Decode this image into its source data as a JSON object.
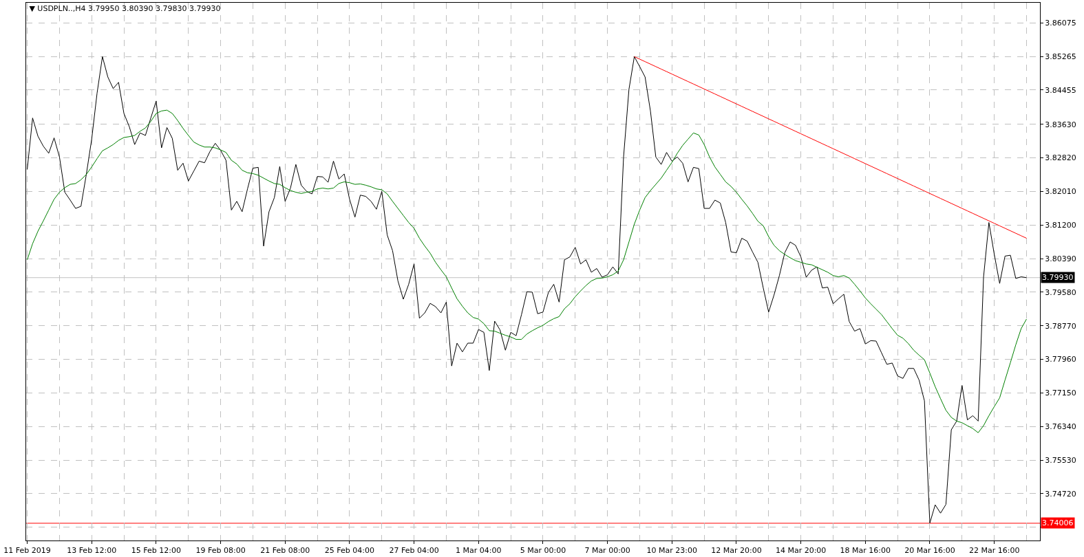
{
  "chart_data": {
    "type": "line",
    "title": "▼ USDPLN..,H4 3.79950 3.80390 3.79830 3.79930",
    "categories": [
      "11 Feb 2019",
      null,
      null,
      null,
      null,
      null,
      null,
      null,
      null,
      null,
      null,
      null,
      "13 Feb 12:00",
      null,
      null,
      null,
      null,
      null,
      null,
      null,
      null,
      null,
      null,
      null,
      "15 Feb 12:00",
      null,
      null,
      null,
      null,
      null,
      null,
      null,
      null,
      null,
      null,
      null,
      "19 Feb 08:00",
      null,
      null,
      null,
      null,
      null,
      null,
      null,
      null,
      null,
      null,
      null,
      "21 Feb 08:00",
      null,
      null,
      null,
      null,
      null,
      null,
      null,
      null,
      null,
      null,
      null,
      "25 Feb 04:00",
      null,
      null,
      null,
      null,
      null,
      null,
      null,
      null,
      null,
      null,
      null,
      "27 Feb 04:00",
      null,
      null,
      null,
      null,
      null,
      null,
      null,
      null,
      null,
      null,
      null,
      "1 Mar 04:00",
      null,
      null,
      null,
      null,
      null,
      null,
      null,
      null,
      null,
      null,
      null,
      "5 Mar 00:00",
      null,
      null,
      null,
      null,
      null,
      null,
      null,
      null,
      null,
      null,
      null,
      "7 Mar 00:00",
      null,
      null,
      null,
      null,
      null,
      null,
      null,
      null,
      null,
      null,
      null,
      "10 Mar 23:00",
      null,
      null,
      null,
      null,
      null,
      null,
      null,
      null,
      null,
      null,
      null,
      "12 Mar 20:00",
      null,
      null,
      null,
      null,
      null,
      null,
      null,
      null,
      null,
      null,
      null,
      "14 Mar 20:00",
      null,
      null,
      null,
      null,
      null,
      null,
      null,
      null,
      null,
      null,
      null,
      "18 Mar 16:00",
      null,
      null,
      null,
      null,
      null,
      null,
      null,
      null,
      null,
      null,
      null,
      "20 Mar 16:00",
      null,
      null,
      null,
      null,
      null,
      null,
      null,
      null,
      null,
      null,
      null,
      "22 Mar 16:00",
      null,
      null,
      null,
      null,
      null,
      null
    ],
    "series": [
      {
        "color": "#000000",
        "values": [
          3.8254,
          3.8378,
          3.8334,
          3.831,
          3.8293,
          3.833,
          3.8284,
          3.8199,
          3.818,
          3.816,
          3.8165,
          3.8242,
          3.8327,
          3.8438,
          3.8526,
          3.8477,
          3.8449,
          3.8464,
          3.8389,
          3.8357,
          3.8314,
          3.8342,
          3.8336,
          3.8378,
          3.8419,
          3.8306,
          3.8355,
          3.8329,
          3.8252,
          3.8269,
          3.8226,
          3.825,
          3.8274,
          3.827,
          3.8297,
          3.8317,
          3.83,
          3.8276,
          3.8156,
          3.8177,
          3.8152,
          3.8207,
          3.8257,
          3.8259,
          3.8069,
          3.8152,
          3.8186,
          3.8261,
          3.8177,
          3.8209,
          3.8266,
          3.8216,
          3.8201,
          3.8195,
          3.8237,
          3.8236,
          3.8223,
          3.8274,
          3.8231,
          3.8243,
          3.8182,
          3.8139,
          3.8192,
          3.8189,
          3.8177,
          3.8158,
          3.8201,
          3.8096,
          3.8058,
          3.7985,
          3.7941,
          3.7977,
          3.8026,
          3.7895,
          3.7908,
          3.7931,
          3.7923,
          3.7908,
          3.7934,
          3.778,
          3.7835,
          3.7814,
          3.7835,
          3.7835,
          3.7868,
          3.7861,
          3.7769,
          3.7888,
          3.7867,
          3.7818,
          3.7861,
          3.7853,
          3.7904,
          3.7959,
          3.7958,
          3.7906,
          3.791,
          3.7957,
          3.7977,
          3.7934,
          3.8036,
          3.8043,
          3.8066,
          3.8026,
          3.8036,
          3.8006,
          3.8015,
          3.7994,
          3.8,
          3.8019,
          3.8002,
          3.8284,
          3.8447,
          3.8526,
          3.8502,
          3.8477,
          3.8395,
          3.8284,
          3.8266,
          3.8295,
          3.8274,
          3.8284,
          3.8269,
          3.8224,
          3.8259,
          3.8256,
          3.816,
          3.816,
          3.818,
          3.8173,
          3.8126,
          3.8055,
          3.8053,
          3.8088,
          3.8081,
          3.8055,
          3.803,
          3.7968,
          3.791,
          3.7951,
          3.7998,
          3.8053,
          3.8079,
          3.8071,
          3.8043,
          3.7994,
          3.8011,
          3.8019,
          3.7968,
          3.797,
          3.793,
          3.7942,
          3.7953,
          3.7887,
          3.7864,
          3.787,
          3.7833,
          3.7841,
          3.784,
          3.7812,
          3.7784,
          3.7787,
          3.7756,
          3.775,
          3.7774,
          3.7774,
          3.7746,
          3.7696,
          3.7401,
          3.7445,
          3.7425,
          3.7446,
          3.7626,
          3.7647,
          3.7733,
          3.765,
          3.766,
          3.7647,
          3.7994,
          3.8126,
          3.8049,
          3.7979,
          3.8045,
          3.8047,
          3.7991,
          3.7995,
          3.7993
        ]
      },
      {
        "color": "#008000",
        "values": [
          3.8036,
          3.8075,
          3.8105,
          3.813,
          3.8156,
          3.8182,
          3.8199,
          3.821,
          3.8218,
          3.822,
          3.8229,
          3.8242,
          3.826,
          3.828,
          3.8299,
          3.8306,
          3.8314,
          3.8324,
          3.8331,
          3.8333,
          3.8336,
          3.8346,
          3.8354,
          3.837,
          3.8389,
          3.8395,
          3.8397,
          3.8389,
          3.8372,
          3.8353,
          3.8336,
          3.832,
          3.8313,
          3.8308,
          3.8308,
          3.8306,
          3.8301,
          3.8295,
          3.8276,
          3.8267,
          3.8252,
          3.8246,
          3.8244,
          3.824,
          3.8233,
          3.8226,
          3.822,
          3.8218,
          3.821,
          3.8203,
          3.8199,
          3.8196,
          3.8199,
          3.8201,
          3.8207,
          3.8209,
          3.8207,
          3.8209,
          3.822,
          3.8224,
          3.8222,
          3.8218,
          3.8219,
          3.8216,
          3.8212,
          3.8207,
          3.8205,
          3.8195,
          3.8177,
          3.816,
          3.8143,
          3.8126,
          3.8112,
          3.8088,
          3.8069,
          3.8052,
          3.803,
          3.8012,
          3.7995,
          3.7968,
          3.7942,
          3.7924,
          3.7908,
          3.7897,
          3.7893,
          3.7882,
          3.7865,
          3.7864,
          3.7859,
          3.7854,
          3.785,
          3.7844,
          3.7844,
          3.7857,
          3.7865,
          3.7872,
          3.7878,
          3.7887,
          3.7894,
          3.7899,
          3.7918,
          3.793,
          3.7947,
          3.7961,
          3.7974,
          3.7985,
          3.7991,
          3.7992,
          3.7995,
          3.8,
          3.8009,
          3.8036,
          3.8079,
          3.8122,
          3.8156,
          3.8186,
          3.8203,
          3.8218,
          3.8233,
          3.8252,
          3.8271,
          3.8293,
          3.8312,
          3.8327,
          3.8342,
          3.8337,
          3.8314,
          3.8284,
          3.826,
          3.8242,
          3.8224,
          3.8213,
          3.8199,
          3.8182,
          3.8166,
          3.8148,
          3.8129,
          3.8118,
          3.8092,
          3.8071,
          3.8058,
          3.8049,
          3.8041,
          3.8034,
          3.803,
          3.8026,
          3.8024,
          3.8018,
          3.8012,
          3.8006,
          3.7998,
          3.7995,
          3.7998,
          3.7992,
          3.7977,
          3.7961,
          3.7944,
          3.793,
          3.7917,
          3.7904,
          3.7887,
          3.787,
          3.7854,
          3.7847,
          3.7834,
          3.7818,
          3.7806,
          3.7795,
          3.7763,
          3.773,
          3.7701,
          3.7673,
          3.7656,
          3.7647,
          3.7643,
          3.7636,
          3.7629,
          3.7619,
          3.7636,
          3.766,
          3.7682,
          3.7703,
          3.7746,
          3.7788,
          3.7831,
          3.787,
          3.7893
        ]
      },
      {
        "color": "#ff0000",
        "values": [
          null,
          null,
          null,
          null,
          null,
          null,
          null,
          null,
          null,
          null,
          null,
          null,
          null,
          null,
          null,
          null,
          null,
          null,
          null,
          null,
          null,
          null,
          null,
          null,
          null,
          null,
          null,
          null,
          null,
          null,
          null,
          null,
          null,
          null,
          null,
          null,
          null,
          null,
          null,
          null,
          null,
          null,
          null,
          null,
          null,
          null,
          null,
          null,
          null,
          null,
          null,
          null,
          null,
          null,
          null,
          null,
          null,
          null,
          null,
          null,
          null,
          null,
          null,
          null,
          null,
          null,
          null,
          null,
          null,
          null,
          null,
          null,
          null,
          null,
          null,
          null,
          null,
          null,
          null,
          null,
          null,
          null,
          null,
          null,
          null,
          null,
          null,
          null,
          null,
          null,
          null,
          null,
          null,
          null,
          null,
          null,
          null,
          null,
          null,
          null,
          null,
          null,
          null,
          null,
          null,
          null,
          null,
          null,
          null,
          null,
          null,
          null,
          null,
          3.8526,
          3.852,
          3.8514,
          3.8508,
          3.8502,
          3.8496,
          3.849,
          3.8484,
          3.8478,
          3.8472,
          3.8466,
          3.846,
          3.8454,
          3.8448,
          3.8442,
          3.8436,
          3.843,
          3.8424,
          3.8418,
          3.8412,
          3.8406,
          3.84,
          3.8394,
          3.8388,
          3.8382,
          3.8376,
          3.837,
          3.8364,
          3.8358,
          3.8352,
          3.8346,
          3.834,
          3.8334,
          3.8328,
          3.8322,
          3.8316,
          3.831,
          3.8304,
          3.8298,
          3.8292,
          3.8286,
          3.828,
          3.8274,
          3.8268,
          3.8262,
          3.8256,
          3.825,
          3.8244,
          3.8238,
          3.8232,
          3.8226,
          3.822,
          3.8214,
          3.8208,
          3.8202,
          3.8196,
          3.819,
          3.8184,
          3.8178,
          3.8172,
          3.8166,
          3.816,
          3.8154,
          3.8148,
          3.8142,
          3.8136,
          3.813,
          3.8124,
          3.8118,
          3.8112,
          3.8106,
          3.81,
          3.8094,
          3.8088
        ]
      }
    ],
    "ylim": [
      3.7359,
      3.8656
    ],
    "yticks": [
      {
        "value": 3.7391,
        "label": null
      },
      {
        "value": 3.7472,
        "label": "3.74720"
      },
      {
        "value": 3.7553,
        "label": "3.75530"
      },
      {
        "value": 3.7634,
        "label": "3.76340"
      },
      {
        "value": 3.7715,
        "label": "3.77150"
      },
      {
        "value": 3.7796,
        "label": "3.77960"
      },
      {
        "value": 3.7877,
        "label": "3.78770"
      },
      {
        "value": 3.7958,
        "label": "3.79580"
      },
      {
        "value": 3.8039,
        "label": "3.80390"
      },
      {
        "value": 3.812,
        "label": "3.81200"
      },
      {
        "value": 3.8201,
        "label": "3.82010"
      },
      {
        "value": 3.8282,
        "label": "3.82820"
      },
      {
        "value": 3.8363,
        "label": "3.83630"
      },
      3.84455,
      3.85265,
      3.86075
    ],
    "ref_lines": [
      {
        "axis": "y",
        "value": 3.7993,
        "label": "3.79930",
        "color": "#c0c0c0"
      },
      {
        "axis": "y",
        "value": 3.74006,
        "label": "3.74006",
        "color": "#ff0000"
      }
    ],
    "grid": true
  }
}
